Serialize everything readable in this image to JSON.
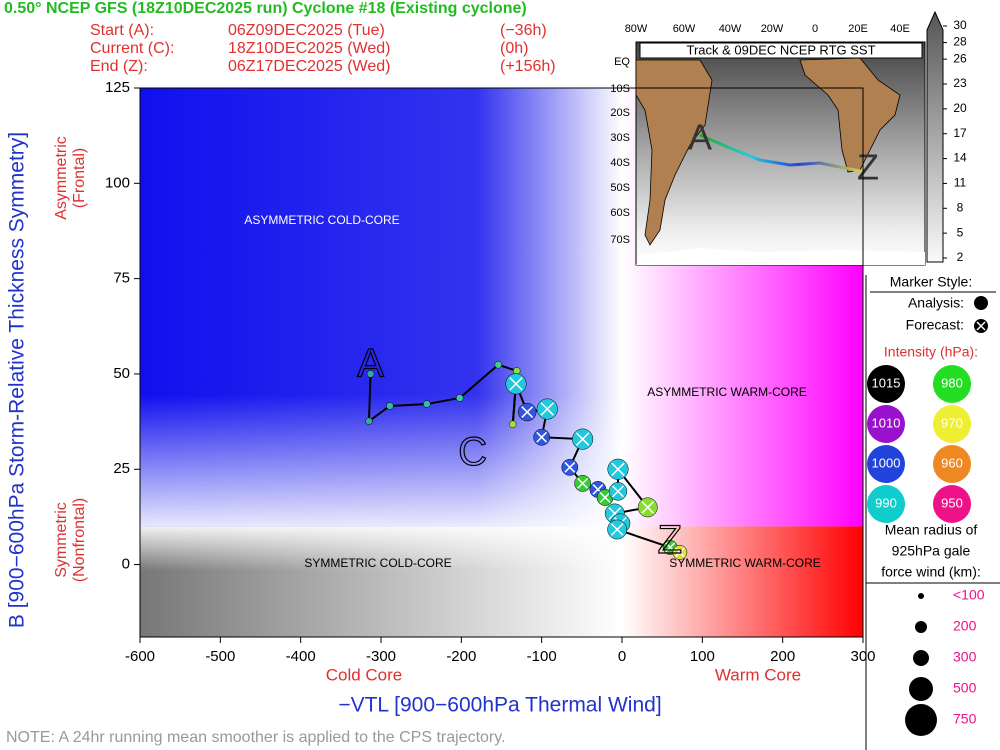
{
  "chart_data": {
    "type": "line",
    "title": "0.50° NCEP GFS (18Z10DEC2025 run) Cyclone #18 (Existing cyclone)",
    "header": [
      [
        "Start (A):",
        "06Z09DEC2025 (Tue)",
        "(−36h)"
      ],
      [
        "Current (C):",
        "18Z10DEC2025 (Wed)",
        "(0h)"
      ],
      [
        "End (Z):",
        "06Z17DEC2025 (Wed)",
        "(+156h)"
      ]
    ],
    "xlabel": "−VTL [900−600hPa Thermal Wind]",
    "ylabel": "B [900−600hPa Storm-Relative Thickness Symmetry]",
    "x_side_labels": [
      "Cold Core",
      "Warm Core"
    ],
    "y_side_labels": [
      [
        "Asymmetric",
        "(Frontal)"
      ],
      [
        "Symmetric",
        "(Nonfrontal)"
      ]
    ],
    "regions": [
      "ASYMMETRIC COLD-CORE",
      "ASYMMETRIC WARM-CORE",
      "SYMMETRIC COLD-CORE",
      "SYMMETRIC WARM-CORE"
    ],
    "track_markers": [
      "A",
      "C",
      "Z"
    ],
    "xlim": [
      -600,
      300
    ],
    "xticks": [
      -600,
      -500,
      -400,
      -300,
      -200,
      -100,
      0,
      100,
      200,
      300
    ],
    "ylim": [
      -19,
      125
    ],
    "yticks": [
      0,
      25,
      50,
      75,
      100,
      125
    ],
    "series": [
      {
        "name": "Analysis:",
        "color": "#000000",
        "x": [
          -313,
          -315,
          -289,
          -243,
          -202,
          -154,
          -131,
          -136
        ],
        "values": [
          50,
          37.6,
          41.6,
          42.1,
          43.7,
          52.4,
          50.8,
          36.8
        ],
        "colors": [
          "#33aa99",
          "#33aa99",
          "#33bbaa",
          "#33bbaa",
          "#33ccaa",
          "#44cc88",
          "#88dd44",
          "#aadd33"
        ]
      },
      {
        "name": "Forecast:",
        "color": "#000000",
        "x": [
          -132,
          -118,
          -93,
          -100,
          -49,
          -65,
          -49,
          -30,
          -21,
          -5,
          -5,
          32,
          -9,
          -2,
          -6,
          60,
          72
        ],
        "values": [
          47.4,
          40,
          40.8,
          33.4,
          32.9,
          25.5,
          21.3,
          19.7,
          17.6,
          19.2,
          25,
          15,
          13.4,
          10.8,
          9.2,
          4.5,
          3.2
        ],
        "colors": [
          "#22c8dd",
          "#3355dd",
          "#22c8dd",
          "#3355dd",
          "#22c8dd",
          "#3355dd",
          "#33cc33",
          "#3355dd",
          "#33cc33",
          "#22c8dd",
          "#22c8dd",
          "#88dd33",
          "#22c8dd",
          "#22c8dd",
          "#22c8dd",
          "#33cc33",
          "#dddd44"
        ],
        "radii_km": [
          300,
          200,
          300,
          150,
          300,
          150,
          150,
          150,
          150,
          200,
          300,
          250,
          250,
          250,
          250,
          100,
          100
        ]
      }
    ],
    "legend": {
      "marker_title": "Marker Style:",
      "intensity_title": "Intensity (hPa):",
      "intensity": [
        {
          "value": 1015,
          "color": "#000000"
        },
        {
          "value": 980,
          "color": "#22dd22"
        },
        {
          "value": 1010,
          "color": "#9911cc"
        },
        {
          "value": 970,
          "color": "#eeee33"
        },
        {
          "value": 1000,
          "color": "#2244dd"
        },
        {
          "value": 960,
          "color": "#ee8822"
        },
        {
          "value": 990,
          "color": "#11cccc"
        },
        {
          "value": 950,
          "color": "#ee1188"
        }
      ],
      "radius_title": [
        "Mean radius of",
        "925hPa gale",
        "force wind (km):"
      ],
      "radius": [
        "<100",
        200,
        300,
        500,
        750
      ]
    },
    "inset": {
      "title": "Track & 09DEC NCEP RTG SST",
      "lon_labels": [
        "80W",
        "60W",
        "40W",
        "20W",
        "0",
        "20E",
        "40E"
      ],
      "lat_labels": [
        "EQ",
        "10S",
        "20S",
        "30S",
        "40S",
        "50S",
        "60S",
        "70S"
      ],
      "colorbar": [
        30,
        28,
        26,
        23,
        20,
        17,
        14,
        11,
        8,
        5,
        2
      ]
    },
    "note": "NOTE:  A 24hr running mean smoother is applied to the CPS trajectory."
  }
}
